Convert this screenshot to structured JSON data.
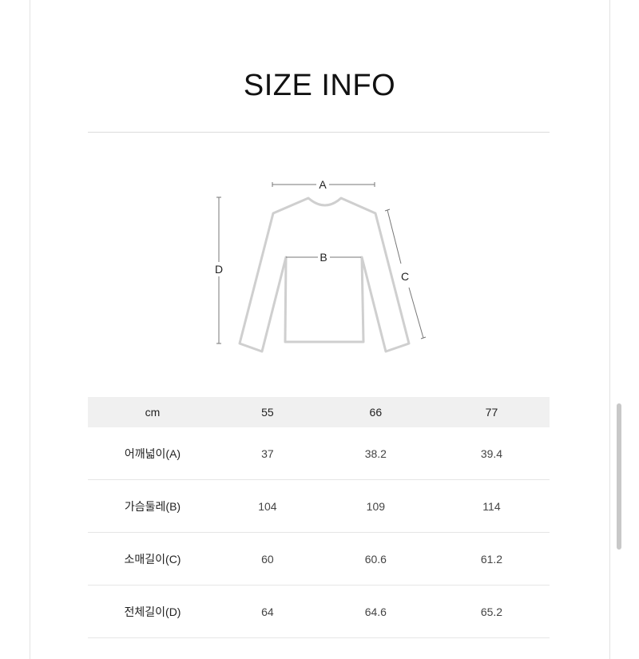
{
  "title": "SIZE INFO",
  "diagram": {
    "labels": {
      "a": "A",
      "b": "B",
      "c": "C",
      "d": "D"
    }
  },
  "table": {
    "headers": [
      "cm",
      "55",
      "66",
      "77"
    ],
    "rows": [
      {
        "label": "어깨넓이(A)",
        "values": [
          "37",
          "38.2",
          "39.4"
        ]
      },
      {
        "label": "가슴둘레(B)",
        "values": [
          "104",
          "109",
          "114"
        ]
      },
      {
        "label": "소매길이(C)",
        "values": [
          "60",
          "60.6",
          "61.2"
        ]
      },
      {
        "label": "전체길이(D)",
        "values": [
          "64",
          "64.6",
          "65.2"
        ]
      }
    ]
  },
  "colors": {
    "header_bg": "#f0f0f0",
    "outline": "#cfcfcf"
  }
}
